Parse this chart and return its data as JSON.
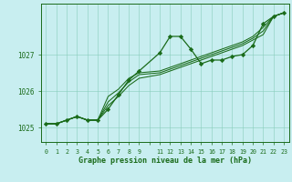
{
  "title": "Graphe pression niveau de la mer (hPa)",
  "bg_color": "#c8eef0",
  "grid_color": "#88ccbb",
  "line_color": "#1a6b1a",
  "xlim": [
    -0.5,
    23.5
  ],
  "ylim": [
    1024.6,
    1028.4
  ],
  "yticks": [
    1025,
    1026,
    1027
  ],
  "ytick_labels": [
    "1025",
    "1026",
    "1027"
  ],
  "xtick_positions": [
    0,
    1,
    2,
    3,
    4,
    5,
    6,
    7,
    8,
    9,
    11,
    12,
    13,
    14,
    15,
    16,
    17,
    18,
    19,
    20,
    21,
    22,
    23
  ],
  "xtick_labels": [
    "0",
    "1",
    "2",
    "3",
    "4",
    "5",
    "6",
    "7",
    "8",
    "9",
    "11",
    "12",
    "13",
    "14",
    "15",
    "16",
    "17",
    "18",
    "19",
    "20",
    "21",
    "22",
    "23"
  ],
  "series": [
    [
      1025.1,
      1025.1,
      1025.2,
      1025.3,
      1025.2,
      1025.2,
      1025.5,
      1025.9,
      1026.3,
      1026.55,
      null,
      1027.05,
      1027.5,
      1027.5,
      1027.15,
      1026.75,
      1026.85,
      1026.85,
      1026.95,
      1027.0,
      1027.25,
      1027.85,
      1028.05,
      1028.15
    ],
    [
      1025.1,
      1025.1,
      1025.2,
      1025.3,
      1025.2,
      1025.2,
      1025.85,
      1026.05,
      1026.35,
      1026.5,
      null,
      1026.55,
      1026.65,
      1026.75,
      1026.85,
      1026.95,
      1027.05,
      1027.15,
      1027.25,
      1027.35,
      1027.5,
      1027.75,
      1028.05,
      1028.15
    ],
    [
      1025.1,
      1025.1,
      1025.2,
      1025.3,
      1025.2,
      1025.2,
      1025.7,
      1025.95,
      1026.25,
      1026.45,
      null,
      1026.5,
      1026.6,
      1026.7,
      1026.8,
      1026.9,
      1027.0,
      1027.1,
      1027.2,
      1027.3,
      1027.45,
      1027.65,
      1028.05,
      1028.15
    ],
    [
      1025.1,
      1025.1,
      1025.2,
      1025.3,
      1025.2,
      1025.2,
      1025.6,
      1025.85,
      1026.15,
      1026.35,
      null,
      1026.45,
      1026.55,
      1026.65,
      1026.75,
      1026.85,
      1026.95,
      1027.05,
      1027.15,
      1027.25,
      1027.4,
      1027.55,
      1028.05,
      1028.15
    ]
  ],
  "main_series_idx": 0
}
